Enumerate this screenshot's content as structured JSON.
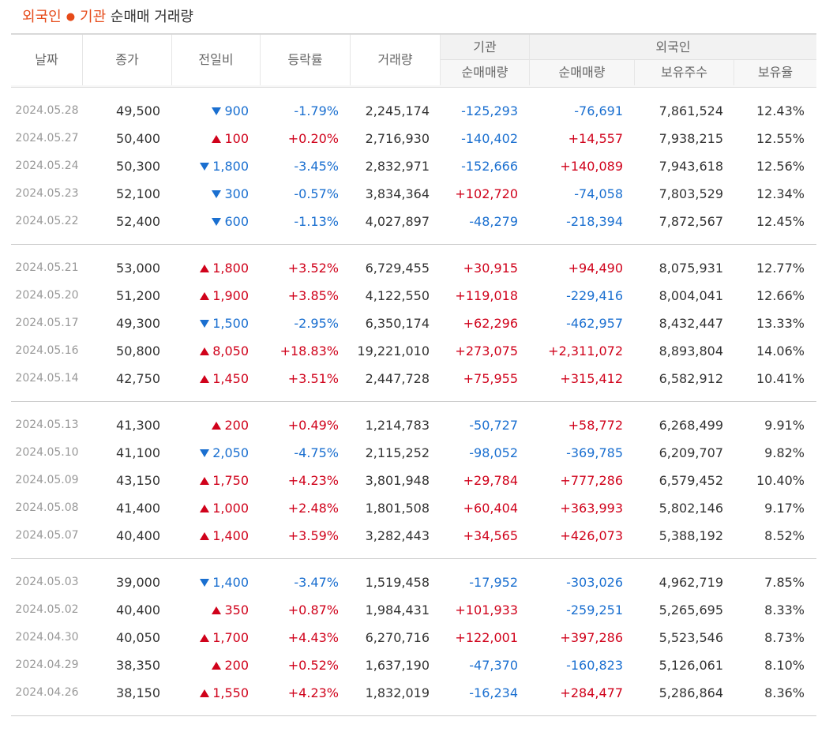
{
  "title": {
    "part1": "외국인",
    "part2": "기관",
    "part3": "순매매 거래량"
  },
  "headers": {
    "date": "날짜",
    "close": "종가",
    "change": "전일비",
    "rate": "등락률",
    "volume": "거래량",
    "inst_group": "기관",
    "inst_net": "순매매량",
    "foreign_group": "외국인",
    "foreign_net": "순매매량",
    "foreign_holdings": "보유주수",
    "foreign_ratio": "보유율"
  },
  "colors": {
    "up": "#d0021b",
    "down": "#1a6fd0",
    "title_accent": "#e64a19"
  },
  "groups": [
    {
      "rows": [
        {
          "date": "2024.05.28",
          "close": "49,500",
          "dir": "down",
          "change": "900",
          "rate": "-1.79%",
          "volume": "2,245,174",
          "inst": "-125,293",
          "foreign": "-76,691",
          "holdings": "7,861,524",
          "ratio": "12.43%"
        },
        {
          "date": "2024.05.27",
          "close": "50,400",
          "dir": "up",
          "change": "100",
          "rate": "+0.20%",
          "volume": "2,716,930",
          "inst": "-140,402",
          "foreign": "+14,557",
          "holdings": "7,938,215",
          "ratio": "12.55%"
        },
        {
          "date": "2024.05.24",
          "close": "50,300",
          "dir": "down",
          "change": "1,800",
          "rate": "-3.45%",
          "volume": "2,832,971",
          "inst": "-152,666",
          "foreign": "+140,089",
          "holdings": "7,943,618",
          "ratio": "12.56%"
        },
        {
          "date": "2024.05.23",
          "close": "52,100",
          "dir": "down",
          "change": "300",
          "rate": "-0.57%",
          "volume": "3,834,364",
          "inst": "+102,720",
          "foreign": "-74,058",
          "holdings": "7,803,529",
          "ratio": "12.34%"
        },
        {
          "date": "2024.05.22",
          "close": "52,400",
          "dir": "down",
          "change": "600",
          "rate": "-1.13%",
          "volume": "4,027,897",
          "inst": "-48,279",
          "foreign": "-218,394",
          "holdings": "7,872,567",
          "ratio": "12.45%"
        }
      ]
    },
    {
      "rows": [
        {
          "date": "2024.05.21",
          "close": "53,000",
          "dir": "up",
          "change": "1,800",
          "rate": "+3.52%",
          "volume": "6,729,455",
          "inst": "+30,915",
          "foreign": "+94,490",
          "holdings": "8,075,931",
          "ratio": "12.77%"
        },
        {
          "date": "2024.05.20",
          "close": "51,200",
          "dir": "up",
          "change": "1,900",
          "rate": "+3.85%",
          "volume": "4,122,550",
          "inst": "+119,018",
          "foreign": "-229,416",
          "holdings": "8,004,041",
          "ratio": "12.66%"
        },
        {
          "date": "2024.05.17",
          "close": "49,300",
          "dir": "down",
          "change": "1,500",
          "rate": "-2.95%",
          "volume": "6,350,174",
          "inst": "+62,296",
          "foreign": "-462,957",
          "holdings": "8,432,447",
          "ratio": "13.33%"
        },
        {
          "date": "2024.05.16",
          "close": "50,800",
          "dir": "up",
          "change": "8,050",
          "rate": "+18.83%",
          "volume": "19,221,010",
          "inst": "+273,075",
          "foreign": "+2,311,072",
          "holdings": "8,893,804",
          "ratio": "14.06%"
        },
        {
          "date": "2024.05.14",
          "close": "42,750",
          "dir": "up",
          "change": "1,450",
          "rate": "+3.51%",
          "volume": "2,447,728",
          "inst": "+75,955",
          "foreign": "+315,412",
          "holdings": "6,582,912",
          "ratio": "10.41%"
        }
      ]
    },
    {
      "rows": [
        {
          "date": "2024.05.13",
          "close": "41,300",
          "dir": "up",
          "change": "200",
          "rate": "+0.49%",
          "volume": "1,214,783",
          "inst": "-50,727",
          "foreign": "+58,772",
          "holdings": "6,268,499",
          "ratio": "9.91%"
        },
        {
          "date": "2024.05.10",
          "close": "41,100",
          "dir": "down",
          "change": "2,050",
          "rate": "-4.75%",
          "volume": "2,115,252",
          "inst": "-98,052",
          "foreign": "-369,785",
          "holdings": "6,209,707",
          "ratio": "9.82%"
        },
        {
          "date": "2024.05.09",
          "close": "43,150",
          "dir": "up",
          "change": "1,750",
          "rate": "+4.23%",
          "volume": "3,801,948",
          "inst": "+29,784",
          "foreign": "+777,286",
          "holdings": "6,579,452",
          "ratio": "10.40%"
        },
        {
          "date": "2024.05.08",
          "close": "41,400",
          "dir": "up",
          "change": "1,000",
          "rate": "+2.48%",
          "volume": "1,801,508",
          "inst": "+60,404",
          "foreign": "+363,993",
          "holdings": "5,802,146",
          "ratio": "9.17%"
        },
        {
          "date": "2024.05.07",
          "close": "40,400",
          "dir": "up",
          "change": "1,400",
          "rate": "+3.59%",
          "volume": "3,282,443",
          "inst": "+34,565",
          "foreign": "+426,073",
          "holdings": "5,388,192",
          "ratio": "8.52%"
        }
      ]
    },
    {
      "rows": [
        {
          "date": "2024.05.03",
          "close": "39,000",
          "dir": "down",
          "change": "1,400",
          "rate": "-3.47%",
          "volume": "1,519,458",
          "inst": "-17,952",
          "foreign": "-303,026",
          "holdings": "4,962,719",
          "ratio": "7.85%"
        },
        {
          "date": "2024.05.02",
          "close": "40,400",
          "dir": "up",
          "change": "350",
          "rate": "+0.87%",
          "volume": "1,984,431",
          "inst": "+101,933",
          "foreign": "-259,251",
          "holdings": "5,265,695",
          "ratio": "8.33%"
        },
        {
          "date": "2024.04.30",
          "close": "40,050",
          "dir": "up",
          "change": "1,700",
          "rate": "+4.43%",
          "volume": "6,270,716",
          "inst": "+122,001",
          "foreign": "+397,286",
          "holdings": "5,523,546",
          "ratio": "8.73%"
        },
        {
          "date": "2024.04.29",
          "close": "38,350",
          "dir": "up",
          "change": "200",
          "rate": "+0.52%",
          "volume": "1,637,190",
          "inst": "-47,370",
          "foreign": "-160,823",
          "holdings": "5,126,061",
          "ratio": "8.10%"
        },
        {
          "date": "2024.04.26",
          "close": "38,150",
          "dir": "up",
          "change": "1,550",
          "rate": "+4.23%",
          "volume": "1,832,019",
          "inst": "-16,234",
          "foreign": "+284,477",
          "holdings": "5,286,864",
          "ratio": "8.36%"
        }
      ]
    }
  ]
}
